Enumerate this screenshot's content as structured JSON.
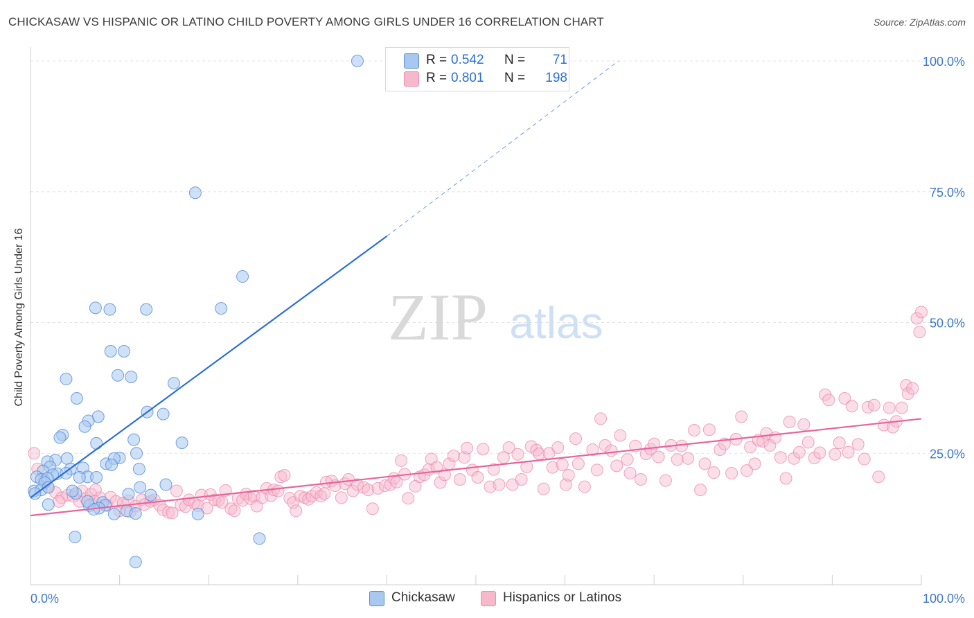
{
  "title": "CHICKASAW VS HISPANIC OR LATINO CHILD POVERTY AMONG GIRLS UNDER 16 CORRELATION CHART",
  "source": "Source: ZipAtlas.com",
  "watermark": {
    "zip": "ZIP",
    "atlas": "atlas"
  },
  "colors": {
    "chickasaw_fill": "#a8c8f0",
    "chickasaw_stroke": "#5b8fd9",
    "chickasaw_line": "#2b6fd6",
    "hispanic_fill": "#f6b9cc",
    "hispanic_stroke": "#ea8fae",
    "hispanic_line": "#e8649a",
    "axis_text": "#3d78c9",
    "grid": "#e3e3e3"
  },
  "stats": [
    {
      "r_label": "R = ",
      "r_value": "0.542",
      "n_label": "N = ",
      "n_value": "71"
    },
    {
      "r_label": "R = ",
      "r_value": "0.801",
      "n_label": "N = ",
      "n_value": "198"
    }
  ],
  "legend": [
    "Chickasaw",
    "Hispanics or Latinos"
  ],
  "chart_data": {
    "type": "scatter",
    "title": "CHICKASAW VS HISPANIC OR LATINO CHILD POVERTY AMONG GIRLS UNDER 16 CORRELATION CHART",
    "xlabel": "",
    "ylabel": "Child Poverty Among Girls Under 16",
    "xlim": [
      0,
      100
    ],
    "ylim": [
      0,
      100
    ],
    "x_tick_labels": [
      "0.0%",
      "100.0%"
    ],
    "y_ticks": [
      25,
      50,
      75,
      100
    ],
    "y_tick_labels": [
      "25.0%",
      "50.0%",
      "75.0%",
      "100.0%"
    ],
    "grid": true,
    "legend_position": "bottom-center",
    "series": [
      {
        "name": "Chickasaw",
        "r": 0.542,
        "n": 71,
        "trend": {
          "x": [
            0,
            40
          ],
          "y": [
            16.5,
            66.5
          ],
          "dashed_to": [
            66,
            100
          ]
        },
        "points": [
          [
            36.7,
            100
          ],
          [
            18.5,
            74.8
          ],
          [
            23.8,
            58.8
          ],
          [
            7.3,
            52.8
          ],
          [
            8.9,
            52.5
          ],
          [
            13.0,
            52.5
          ],
          [
            21.4,
            52.7
          ],
          [
            9.0,
            44.5
          ],
          [
            10.5,
            44.5
          ],
          [
            9.8,
            39.9
          ],
          [
            11.3,
            39.6
          ],
          [
            4.0,
            39.2
          ],
          [
            16.1,
            38.4
          ],
          [
            5.2,
            35.5
          ],
          [
            7.6,
            32.0
          ],
          [
            13.1,
            32.9
          ],
          [
            14.9,
            32.5
          ],
          [
            6.5,
            31.2
          ],
          [
            6.1,
            30.1
          ],
          [
            3.6,
            28.5
          ],
          [
            3.3,
            28.0
          ],
          [
            11.6,
            27.6
          ],
          [
            7.4,
            26.9
          ],
          [
            17.0,
            27.0
          ],
          [
            2.8,
            23.7
          ],
          [
            1.9,
            23.4
          ],
          [
            8.5,
            23.0
          ],
          [
            10.0,
            24.1
          ],
          [
            9.4,
            24.0
          ],
          [
            11.9,
            25.0
          ],
          [
            4.1,
            24.0
          ],
          [
            9.1,
            22.8
          ],
          [
            2.2,
            22.4
          ],
          [
            4.5,
            22.0
          ],
          [
            5.9,
            22.2
          ],
          [
            1.4,
            21.6
          ],
          [
            3.0,
            21.1
          ],
          [
            6.4,
            20.5
          ],
          [
            5.5,
            20.4
          ],
          [
            12.2,
            22.0
          ],
          [
            0.7,
            20.5
          ],
          [
            1.2,
            20.0
          ],
          [
            2.5,
            20.9
          ],
          [
            1.9,
            20.2
          ],
          [
            4.0,
            21.2
          ],
          [
            7.4,
            20.4
          ],
          [
            1.6,
            19.4
          ],
          [
            0.4,
            17.8
          ],
          [
            1.2,
            18.0
          ],
          [
            0.5,
            17.3
          ],
          [
            2.0,
            18.5
          ],
          [
            5.1,
            17.3
          ],
          [
            13.5,
            17.0
          ],
          [
            15.2,
            19.0
          ],
          [
            12.3,
            18.5
          ],
          [
            11.0,
            17.2
          ],
          [
            6.6,
            15.0
          ],
          [
            8.1,
            15.6
          ],
          [
            8.4,
            15.1
          ],
          [
            7.7,
            14.5
          ],
          [
            7.1,
            14.3
          ],
          [
            10.8,
            14.0
          ],
          [
            9.4,
            13.4
          ],
          [
            11.8,
            13.5
          ],
          [
            18.8,
            13.4
          ],
          [
            2.0,
            15.2
          ],
          [
            5.0,
            9.0
          ],
          [
            25.7,
            8.7
          ],
          [
            11.8,
            4.2
          ],
          [
            6.4,
            15.8
          ],
          [
            4.7,
            17.8
          ]
        ]
      },
      {
        "name": "Hispanics or Latinos",
        "r": 0.801,
        "n": 198,
        "trend": {
          "x": [
            0,
            100
          ],
          "y": [
            13.1,
            31.6
          ]
        },
        "points": [
          [
            0.4,
            25.0
          ],
          [
            0.8,
            22.0
          ],
          [
            1.5,
            20.0
          ],
          [
            2.0,
            18.5
          ],
          [
            2.8,
            17.5
          ],
          [
            3.5,
            16.5
          ],
          [
            3.2,
            15.8
          ],
          [
            4.2,
            17.0
          ],
          [
            4.8,
            16.8
          ],
          [
            5.5,
            15.8
          ],
          [
            5.8,
            17.8
          ],
          [
            6.2,
            16.3
          ],
          [
            6.8,
            17.2
          ],
          [
            7.2,
            15.8
          ],
          [
            7.8,
            16.5
          ],
          [
            7.3,
            18.0
          ],
          [
            8.6,
            15.0
          ],
          [
            9.0,
            16.6
          ],
          [
            9.6,
            15.8
          ],
          [
            10.0,
            14.0
          ],
          [
            10.4,
            15.5
          ],
          [
            11.0,
            15.9
          ],
          [
            11.2,
            13.8
          ],
          [
            11.8,
            14.9
          ],
          [
            12.5,
            16.1
          ],
          [
            12.8,
            15.2
          ],
          [
            13.5,
            15.8
          ],
          [
            13.9,
            16.1
          ],
          [
            14.5,
            15.1
          ],
          [
            14.9,
            14.2
          ],
          [
            15.5,
            13.7
          ],
          [
            15.9,
            13.6
          ],
          [
            16.4,
            17.8
          ],
          [
            16.9,
            15.1
          ],
          [
            17.4,
            14.8
          ],
          [
            17.8,
            16.1
          ],
          [
            18.4,
            15.5
          ],
          [
            18.8,
            15.0
          ],
          [
            19.2,
            17.0
          ],
          [
            19.8,
            14.5
          ],
          [
            20.2,
            17.1
          ],
          [
            20.7,
            16.1
          ],
          [
            21.1,
            16.0
          ],
          [
            21.5,
            15.6
          ],
          [
            21.9,
            17.9
          ],
          [
            22.5,
            14.4
          ],
          [
            22.9,
            14.0
          ],
          [
            23.3,
            16.4
          ],
          [
            23.8,
            16.0
          ],
          [
            24.2,
            17.2
          ],
          [
            24.7,
            16.3
          ],
          [
            25.1,
            16.8
          ],
          [
            25.4,
            14.9
          ],
          [
            26.0,
            16.5
          ],
          [
            26.5,
            18.3
          ],
          [
            27.0,
            16.9
          ],
          [
            27.3,
            18.0
          ],
          [
            27.8,
            17.8
          ],
          [
            28.1,
            20.5
          ],
          [
            28.5,
            20.8
          ],
          [
            29.1,
            16.4
          ],
          [
            29.5,
            15.6
          ],
          [
            29.8,
            14.0
          ],
          [
            30.3,
            16.8
          ],
          [
            30.8,
            16.5
          ],
          [
            31.2,
            16.2
          ],
          [
            31.6,
            16.8
          ],
          [
            32.1,
            17.5
          ],
          [
            32.6,
            16.8
          ],
          [
            33.0,
            17.3
          ],
          [
            33.2,
            19.5
          ],
          [
            33.8,
            19.7
          ],
          [
            34.2,
            18.8
          ],
          [
            34.9,
            16.5
          ],
          [
            35.3,
            19.2
          ],
          [
            35.7,
            20.0
          ],
          [
            36.2,
            17.8
          ],
          [
            36.7,
            19.0
          ],
          [
            37.4,
            18.5
          ],
          [
            37.9,
            18.0
          ],
          [
            38.4,
            14.4
          ],
          [
            39.0,
            18.3
          ],
          [
            39.8,
            18.8
          ],
          [
            40.4,
            19.0
          ],
          [
            40.8,
            20.2
          ],
          [
            41.1,
            19.5
          ],
          [
            41.6,
            23.6
          ],
          [
            42.0,
            21.0
          ],
          [
            42.4,
            16.4
          ],
          [
            43.2,
            18.7
          ],
          [
            43.7,
            20.5
          ],
          [
            44.2,
            20.9
          ],
          [
            44.7,
            21.9
          ],
          [
            45.0,
            23.9
          ],
          [
            45.6,
            22.3
          ],
          [
            46.0,
            19.4
          ],
          [
            46.5,
            20.9
          ],
          [
            47.0,
            23.0
          ],
          [
            47.5,
            24.5
          ],
          [
            48.2,
            20.0
          ],
          [
            48.7,
            24.2
          ],
          [
            49.0,
            26.0
          ],
          [
            49.6,
            21.8
          ],
          [
            50.2,
            20.4
          ],
          [
            50.8,
            25.8
          ],
          [
            51.6,
            18.6
          ],
          [
            52.0,
            21.9
          ],
          [
            52.6,
            19.0
          ],
          [
            53.1,
            24.2
          ],
          [
            53.7,
            26.1
          ],
          [
            54.1,
            19.0
          ],
          [
            54.7,
            24.8
          ],
          [
            55.1,
            20.0
          ],
          [
            55.7,
            22.4
          ],
          [
            56.2,
            26.3
          ],
          [
            56.8,
            25.6
          ],
          [
            57.1,
            24.9
          ],
          [
            57.6,
            18.2
          ],
          [
            58.2,
            25.0
          ],
          [
            58.6,
            22.3
          ],
          [
            59.2,
            26.1
          ],
          [
            59.7,
            22.8
          ],
          [
            60.1,
            19.0
          ],
          [
            60.4,
            20.8
          ],
          [
            61.2,
            27.8
          ],
          [
            61.5,
            23.0
          ],
          [
            62.2,
            18.6
          ],
          [
            63.1,
            25.7
          ],
          [
            63.6,
            21.8
          ],
          [
            64.0,
            31.6
          ],
          [
            64.5,
            26.5
          ],
          [
            65.2,
            25.5
          ],
          [
            65.8,
            22.6
          ],
          [
            66.2,
            28.4
          ],
          [
            67.0,
            23.8
          ],
          [
            67.3,
            21.2
          ],
          [
            67.9,
            26.4
          ],
          [
            68.5,
            20.0
          ],
          [
            69.1,
            24.9
          ],
          [
            69.6,
            25.8
          ],
          [
            70.0,
            26.8
          ],
          [
            70.5,
            24.3
          ],
          [
            71.3,
            19.8
          ],
          [
            71.9,
            26.5
          ],
          [
            72.6,
            23.8
          ],
          [
            73.1,
            26.4
          ],
          [
            73.8,
            24.0
          ],
          [
            74.5,
            29.4
          ],
          [
            75.2,
            18.0
          ],
          [
            75.7,
            23.0
          ],
          [
            76.2,
            29.5
          ],
          [
            76.7,
            21.3
          ],
          [
            77.4,
            25.7
          ],
          [
            77.9,
            26.8
          ],
          [
            78.7,
            21.2
          ],
          [
            79.2,
            27.7
          ],
          [
            79.8,
            32.0
          ],
          [
            80.4,
            21.7
          ],
          [
            80.8,
            26.2
          ],
          [
            81.3,
            23.0
          ],
          [
            81.7,
            27.5
          ],
          [
            82.2,
            27.3
          ],
          [
            82.6,
            28.8
          ],
          [
            83.0,
            26.5
          ],
          [
            83.6,
            28.0
          ],
          [
            84.2,
            24.2
          ],
          [
            84.8,
            20.2
          ],
          [
            85.2,
            31.0
          ],
          [
            85.7,
            24.0
          ],
          [
            86.3,
            25.2
          ],
          [
            86.8,
            30.5
          ],
          [
            87.3,
            27.1
          ],
          [
            88.0,
            24.1
          ],
          [
            88.6,
            25.1
          ],
          [
            89.2,
            36.2
          ],
          [
            89.6,
            35.2
          ],
          [
            90.3,
            24.8
          ],
          [
            90.8,
            27.0
          ],
          [
            91.4,
            35.5
          ],
          [
            91.8,
            25.2
          ],
          [
            92.2,
            34.0
          ],
          [
            92.9,
            26.7
          ],
          [
            93.6,
            23.9
          ],
          [
            94.0,
            33.8
          ],
          [
            94.7,
            34.2
          ],
          [
            95.2,
            20.5
          ],
          [
            95.8,
            30.4
          ],
          [
            96.4,
            33.7
          ],
          [
            96.8,
            30.0
          ],
          [
            97.2,
            31.1
          ],
          [
            97.8,
            33.7
          ],
          [
            98.3,
            38.0
          ],
          [
            98.5,
            36.4
          ],
          [
            99.0,
            37.4
          ],
          [
            99.5,
            50.8
          ],
          [
            99.8,
            48.2
          ],
          [
            100.0,
            52.0
          ]
        ]
      }
    ]
  }
}
